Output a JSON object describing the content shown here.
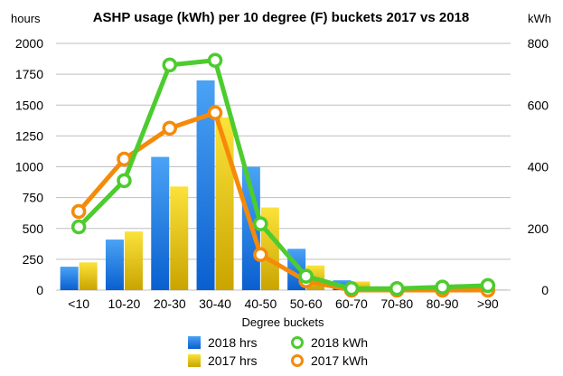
{
  "chart_data": {
    "type": "bar",
    "title": "ASHP usage (kWh) per 10 degree (F) buckets 2017 vs 2018",
    "xlabel": "Degree buckets",
    "ylabel_left": "hours",
    "ylabel_right": "kWh",
    "categories": [
      "<10",
      "10-20",
      "20-30",
      "30-40",
      "40-50",
      "50-60",
      "60-70",
      "70-80",
      "80-90",
      ">90"
    ],
    "ylim_left": [
      0,
      2000
    ],
    "ylim_right": [
      0,
      800
    ],
    "yticks_left": [
      "0",
      "250",
      "500",
      "750",
      "1000",
      "1250",
      "1500",
      "1750",
      "2000"
    ],
    "yticks_right": [
      "0",
      "200",
      "400",
      "600",
      "800"
    ],
    "grid": true,
    "legend_position": "bottom",
    "series": [
      {
        "name": "2018 hrs",
        "type": "bar",
        "axis": "left",
        "color": "#1f7fe0",
        "values": [
          190,
          410,
          1080,
          1700,
          1000,
          335,
          80,
          25,
          10,
          8
        ]
      },
      {
        "name": "2017 hrs",
        "type": "bar",
        "axis": "left",
        "color": "#f0cc00",
        "values": [
          225,
          475,
          840,
          1400,
          670,
          200,
          70,
          15,
          10,
          5
        ]
      },
      {
        "name": "2018 kWh",
        "type": "line",
        "axis": "right",
        "color": "#4ccc2e",
        "values": [
          205,
          355,
          730,
          745,
          215,
          45,
          5,
          5,
          10,
          15
        ]
      },
      {
        "name": "2017 kWh",
        "type": "line",
        "axis": "right",
        "color": "#f58a0a",
        "values": [
          255,
          425,
          525,
          575,
          115,
          30,
          0,
          0,
          0,
          0
        ]
      }
    ]
  }
}
